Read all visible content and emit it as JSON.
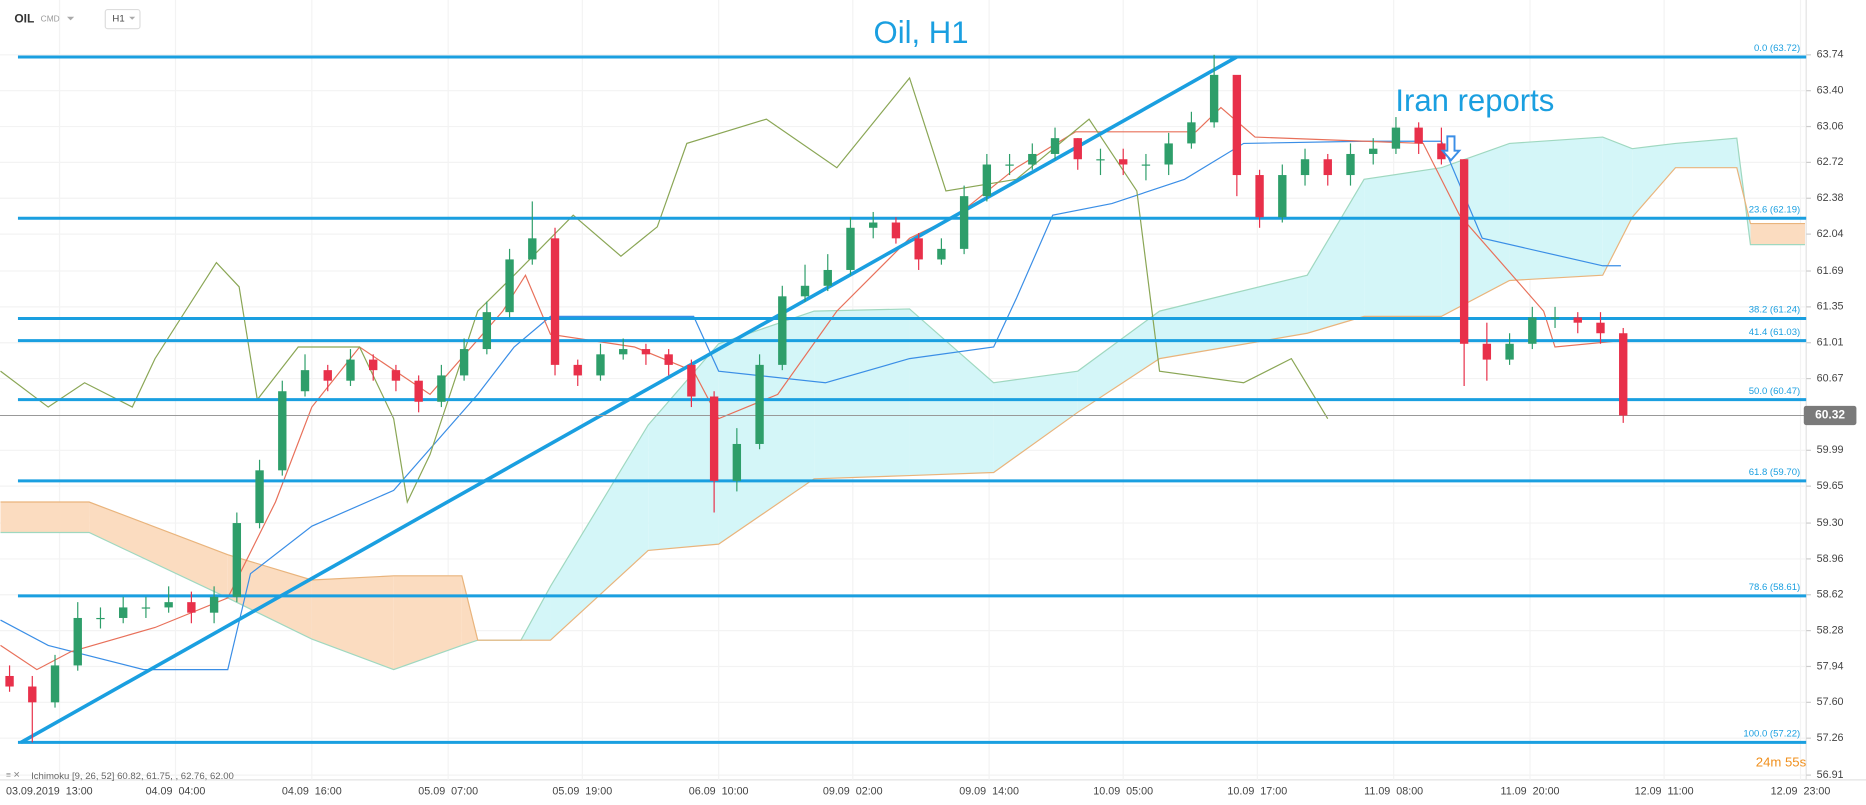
{
  "chart_data": {
    "type": "candlestick",
    "title": "Oil, H1",
    "symbol": "OIL",
    "market": "CMD",
    "timeframe": "H1",
    "annotation": "Iran reports",
    "indicator_label": "Ichimoku [9, 26, 52] 60.82, 61.75, , 62.76, 62.00",
    "timer": "24m 55s",
    "last_price": 60.32,
    "grid": true,
    "xlim": [
      -0.42,
      79.05
    ],
    "ylim": [
      56.91,
      64.26
    ],
    "yticks": [
      {
        "value": 63.74,
        "label": "63.74"
      },
      {
        "value": 63.4,
        "label": "63.40"
      },
      {
        "value": 63.06,
        "label": "63.06"
      },
      {
        "value": 62.72,
        "label": "62.72"
      },
      {
        "value": 62.38,
        "label": "62.38"
      },
      {
        "value": 62.04,
        "label": "62.04"
      },
      {
        "value": 61.69,
        "label": "61.69"
      },
      {
        "value": 61.35,
        "label": "61.35"
      },
      {
        "value": 61.01,
        "label": "61.01"
      },
      {
        "value": 60.67,
        "label": "60.67"
      },
      {
        "value": 59.99,
        "label": "59.99"
      },
      {
        "value": 59.65,
        "label": "59.65"
      },
      {
        "value": 59.3,
        "label": "59.30"
      },
      {
        "value": 58.96,
        "label": "58.96"
      },
      {
        "value": 58.62,
        "label": "58.62"
      },
      {
        "value": 58.28,
        "label": "58.28"
      },
      {
        "value": 57.94,
        "label": "57.94"
      },
      {
        "value": 57.6,
        "label": "57.60"
      },
      {
        "value": 57.26,
        "label": "57.26"
      },
      {
        "value": 56.91,
        "label": "56.91"
      }
    ],
    "xticks": [
      {
        "value": 2.2,
        "label": "03.09.2019  13:00"
      },
      {
        "value": 7.3,
        "label": "04.09  04:00"
      },
      {
        "value": 13.3,
        "label": "04.09  16:00"
      },
      {
        "value": 19.3,
        "label": "05.09  07:00"
      },
      {
        "value": 25.2,
        "label": "05.09  19:00"
      },
      {
        "value": 31.2,
        "label": "06.09  10:00"
      },
      {
        "value": 37.1,
        "label": "09.09  02:00"
      },
      {
        "value": 43.1,
        "label": "09.09  14:00"
      },
      {
        "value": 49,
        "label": "10.09  05:00"
      },
      {
        "value": 54.9,
        "label": "10.09  17:00"
      },
      {
        "value": 60.9,
        "label": "11.09  08:00"
      },
      {
        "value": 66.9,
        "label": "11.09  20:00"
      },
      {
        "value": 72.8,
        "label": "12.09  11:00"
      },
      {
        "value": 78.8,
        "label": "12.09  23:00"
      }
    ],
    "candles": {
      "up_color": "#2e9e6a",
      "down_color": "#e8304a",
      "open": [
        57.85,
        57.75,
        57.6,
        57.95,
        58.4,
        58.4,
        58.5,
        58.5,
        58.55,
        58.45,
        58.6,
        59.3,
        59.8,
        60.55,
        60.75,
        60.65,
        60.85,
        60.75,
        60.65,
        60.45,
        60.7,
        60.95,
        61.3,
        61.8,
        62.0,
        60.8,
        60.7,
        60.9,
        60.95,
        60.9,
        60.8,
        60.5,
        59.7,
        60.05,
        60.8,
        61.45,
        61.55,
        61.7,
        62.1,
        62.15,
        62.0,
        61.8,
        61.9,
        62.4,
        62.7,
        62.7,
        62.8,
        62.95,
        62.75,
        62.75,
        62.7,
        62.7,
        62.9,
        63.1,
        63.55,
        62.6,
        62.2,
        62.6,
        62.75,
        62.6,
        62.8,
        62.85,
        63.05,
        62.9,
        62.75,
        61.0,
        60.85,
        61.0,
        61.25,
        61.25,
        61.2,
        61.1
      ],
      "high": [
        57.95,
        57.85,
        58.05,
        58.55,
        58.5,
        58.6,
        58.6,
        58.7,
        58.65,
        58.7,
        59.4,
        59.9,
        60.65,
        60.9,
        60.8,
        60.95,
        60.9,
        60.8,
        60.7,
        60.8,
        61.05,
        61.4,
        61.9,
        62.35,
        62.1,
        60.85,
        61.0,
        61.05,
        61.0,
        60.95,
        60.85,
        60.55,
        60.2,
        60.9,
        61.55,
        61.75,
        61.85,
        62.2,
        62.25,
        62.2,
        62.05,
        62.0,
        62.5,
        62.8,
        62.8,
        62.9,
        63.05,
        62.95,
        62.85,
        62.85,
        62.8,
        63.0,
        63.2,
        63.74,
        63.45,
        62.65,
        62.7,
        62.85,
        62.8,
        62.9,
        62.95,
        63.15,
        63.1,
        63.05,
        62.75,
        61.2,
        61.1,
        61.35,
        61.35,
        61.3,
        61.3,
        61.15
      ],
      "low": [
        57.7,
        57.22,
        57.55,
        57.9,
        58.3,
        58.35,
        58.4,
        58.45,
        58.35,
        58.35,
        58.55,
        59.25,
        59.75,
        60.5,
        60.55,
        60.6,
        60.65,
        60.55,
        60.35,
        60.4,
        60.65,
        60.9,
        61.25,
        61.75,
        60.7,
        60.6,
        60.65,
        60.85,
        60.8,
        60.7,
        60.4,
        59.4,
        59.6,
        60.0,
        60.75,
        61.4,
        61.5,
        61.65,
        62.0,
        61.95,
        61.7,
        61.75,
        61.85,
        62.35,
        62.6,
        62.65,
        62.75,
        62.65,
        62.6,
        62.6,
        62.55,
        62.6,
        62.85,
        63.05,
        62.4,
        62.1,
        62.15,
        62.5,
        62.5,
        62.5,
        62.7,
        62.8,
        62.8,
        62.7,
        60.6,
        60.65,
        60.8,
        60.95,
        61.15,
        61.1,
        61.0,
        60.25
      ],
      "close": [
        57.75,
        57.6,
        57.95,
        58.4,
        58.4,
        58.5,
        58.5,
        58.55,
        58.45,
        58.6,
        59.3,
        59.8,
        60.55,
        60.75,
        60.65,
        60.85,
        60.75,
        60.65,
        60.45,
        60.7,
        60.95,
        61.3,
        61.8,
        62.0,
        60.8,
        60.7,
        60.9,
        60.95,
        60.9,
        60.8,
        60.5,
        59.7,
        60.05,
        60.8,
        61.45,
        61.55,
        61.7,
        62.1,
        62.15,
        62.0,
        61.8,
        61.9,
        62.4,
        62.7,
        62.7,
        62.8,
        62.95,
        62.75,
        62.75,
        62.7,
        62.7,
        62.9,
        63.1,
        63.55,
        62.6,
        62.2,
        62.6,
        62.75,
        62.6,
        62.8,
        62.85,
        63.05,
        62.9,
        62.75,
        61.0,
        60.85,
        61.0,
        61.25,
        61.25,
        61.2,
        61.1,
        60.32
      ]
    },
    "cloud": {
      "up_color": "#d4f6f8",
      "down_color": "#fbdcc0",
      "up_edge": "#9fd8c0",
      "down_edge": "#e9b47c",
      "x": [
        -0.4,
        3.5,
        9.6,
        13.3,
        16.9,
        19.9,
        20.6,
        22.5,
        23.8,
        28.1,
        31.2,
        35.4,
        39.6,
        43.3,
        47,
        50.6,
        57.1,
        59.6,
        63,
        66,
        70.1,
        71.4,
        73.3,
        76,
        76.6,
        79
      ],
      "span_a": [
        59.21,
        59.21,
        58.59,
        58.2,
        57.91,
        58.14,
        58.19,
        58.19,
        58.7,
        60.23,
        61.0,
        61.31,
        61.33,
        60.63,
        60.74,
        61.31,
        61.65,
        62.56,
        62.67,
        62.9,
        62.96,
        62.85,
        62.9,
        62.95,
        61.94,
        61.94
      ],
      "span_b": [
        59.5,
        59.5,
        59.0,
        58.76,
        58.8,
        58.8,
        58.19,
        58.19,
        58.19,
        59.04,
        59.1,
        59.72,
        59.75,
        59.78,
        60.35,
        60.86,
        61.1,
        61.26,
        61.26,
        61.6,
        61.65,
        62.2,
        62.67,
        62.67,
        62.14,
        62.14
      ]
    },
    "series": [
      {
        "color": "#3a8ee6",
        "x": [
          -0.4,
          1.7,
          5.9,
          9.6,
          10.6,
          13.3,
          16.9,
          20.6,
          22.2,
          23.8,
          30.1,
          31.2,
          35.9,
          39.6,
          43.3,
          44.3,
          45.9,
          48.5,
          51.7,
          54.3,
          59.6,
          63,
          64.8,
          70.1,
          70.9
        ],
        "values": [
          58.38,
          58.14,
          57.91,
          57.91,
          58.82,
          59.27,
          59.61,
          60.52,
          60.97,
          61.26,
          61.26,
          60.74,
          60.63,
          60.86,
          60.97,
          61.43,
          62.22,
          62.33,
          62.56,
          62.9,
          62.92,
          62.92,
          62.0,
          61.74,
          61.74
        ]
      },
      {
        "color": "#e8705a",
        "x": [
          -0.4,
          1.2,
          2.7,
          6.4,
          9.6,
          11.7,
          13.3,
          15.4,
          18.5,
          21.7,
          22.7,
          23.8,
          27.5,
          30.1,
          31.2,
          33.8,
          36.4,
          39.6,
          41.7,
          44.3,
          46.9,
          52.2,
          53.3,
          54.8,
          62.2,
          63.8,
          67.5,
          68,
          70.9
        ],
        "values": [
          58.14,
          57.91,
          58.08,
          58.31,
          58.59,
          59.5,
          60.4,
          60.97,
          60.52,
          61.31,
          61.65,
          61.09,
          60.97,
          60.74,
          60.29,
          60.52,
          61.31,
          62.0,
          62.22,
          62.67,
          63.01,
          63.01,
          63.24,
          62.96,
          62.9,
          62.22,
          61.31,
          60.97,
          61.03
        ]
      },
      {
        "color": "#8aa655",
        "x": [
          -0.4,
          1.7,
          3.3,
          5.4,
          6.4,
          9.1,
          10.1,
          10.9,
          12.7,
          15.4,
          16.9,
          17.5,
          18.5,
          20.6,
          22.2,
          24.8,
          26.9,
          28.5,
          29.8,
          33.3,
          36.4,
          39.6,
          41.2,
          44.3,
          47.5,
          49.6,
          50.6,
          54.3,
          56.4,
          58
        ],
        "values": [
          60.74,
          60.4,
          60.63,
          60.4,
          60.86,
          61.77,
          61.54,
          60.47,
          60.97,
          60.97,
          60.29,
          59.5,
          59.95,
          61.31,
          61.65,
          62.22,
          61.83,
          62.11,
          62.9,
          63.13,
          62.67,
          63.52,
          62.45,
          62.56,
          63.13,
          62.45,
          60.74,
          60.63,
          60.86,
          60.29
        ]
      }
    ],
    "trendline": {
      "color": "#1a9fe0",
      "x": [
        0.5,
        54
      ],
      "values": [
        57.22,
        63.72
      ]
    },
    "fib_color": "#1a9fe0",
    "fib_levels": [
      {
        "value": 63.72,
        "label": "0.0 (63.72)"
      },
      {
        "value": 62.19,
        "label": "23.6 (62.19)"
      },
      {
        "value": 61.24,
        "label": "38.2 (61.24)"
      },
      {
        "value": 61.03,
        "label": "41.4 (61.03)"
      },
      {
        "value": 60.47,
        "label": "50.0 (60.47)"
      },
      {
        "value": 59.7,
        "label": "61.8 (59.70)"
      },
      {
        "value": 58.61,
        "label": "78.6 (58.61)"
      },
      {
        "value": 57.22,
        "label": "100.0 (57.22)"
      }
    ]
  }
}
